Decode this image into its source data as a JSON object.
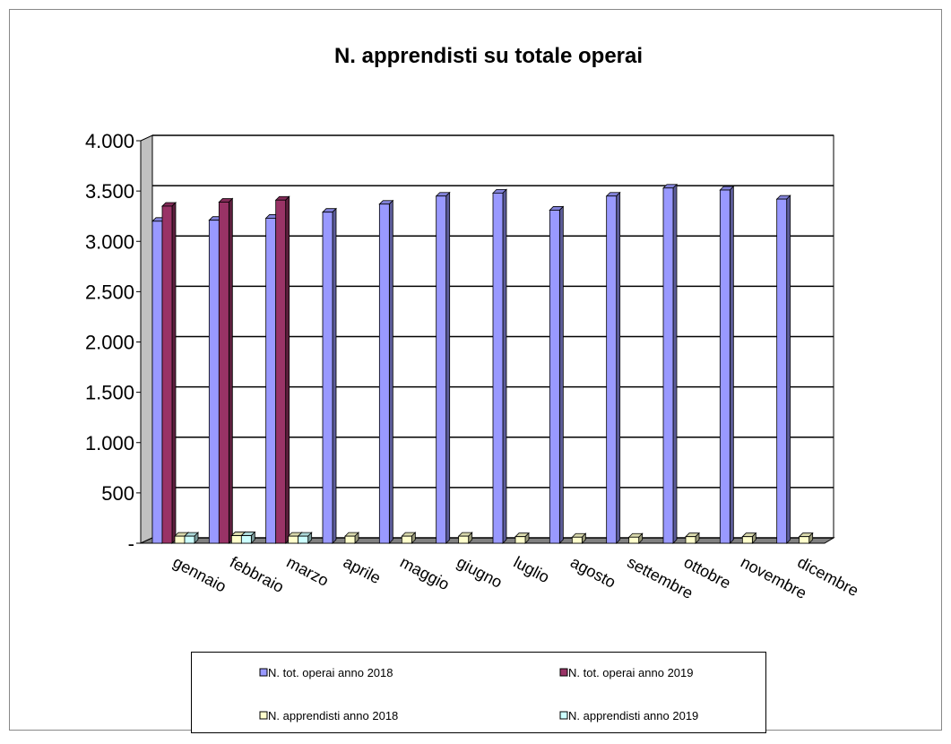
{
  "chart_data": {
    "type": "bar3d",
    "title": "N. apprendisti su totale operai",
    "categories": [
      "gennaio",
      "febbraio",
      "marzo",
      "aprile",
      "maggio",
      "giugno",
      "luglio",
      "agosto",
      "settembre",
      "ottobre",
      "novembre",
      "dicembre"
    ],
    "series": [
      {
        "name": "N. tot. operai anno 2018",
        "color": "#9999ff",
        "values": [
          3200,
          3210,
          3230,
          3290,
          3370,
          3450,
          3480,
          3310,
          3450,
          3530,
          3510,
          3420
        ]
      },
      {
        "name": "N. tot. operai anno 2019",
        "color": "#993366",
        "values": [
          3350,
          3390,
          3410,
          null,
          null,
          null,
          null,
          null,
          null,
          null,
          null,
          null
        ]
      },
      {
        "name": "N. apprendisti anno 2018",
        "color": "#ffffcc",
        "values": [
          70,
          75,
          70,
          70,
          70,
          70,
          65,
          60,
          60,
          65,
          65,
          65
        ]
      },
      {
        "name": "N. apprendisti anno 2019",
        "color": "#ccffff",
        "values": [
          70,
          75,
          70,
          null,
          null,
          null,
          null,
          null,
          null,
          null,
          null,
          null
        ]
      }
    ],
    "ylim": [
      0,
      4000
    ],
    "yticks": [
      {
        "value": 0,
        "label": "-"
      },
      500,
      {
        "value": 1000,
        "label": "1.000"
      },
      {
        "value": 1500,
        "label": "1.500"
      },
      {
        "value": 2000,
        "label": "2.000"
      },
      {
        "value": 2500,
        "label": "2.500"
      },
      {
        "value": 3000,
        "label": "3.000"
      },
      {
        "value": 3500,
        "label": "3.500"
      },
      {
        "value": 4000,
        "label": "4.000"
      }
    ],
    "grid": true
  }
}
